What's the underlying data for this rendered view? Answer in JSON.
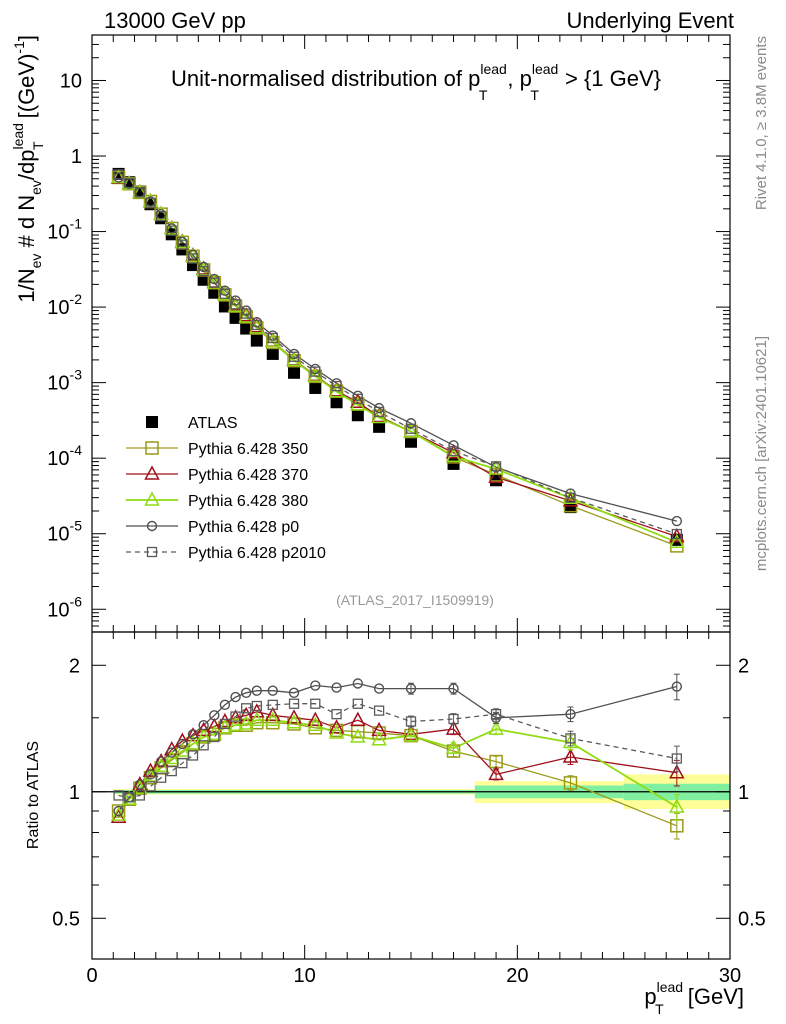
{
  "header": {
    "left": "13000 GeV pp",
    "right": "Underlying Event"
  },
  "side_labels": {
    "rivet": "Rivet 4.1.0, ≥ 3.8M events",
    "mcplots": "mcplots.cern.ch [arXiv:2401.10621]"
  },
  "analysis_id": "(ATLAS_2017_I1509919)",
  "title": {
    "main": "Unit-normalised distribution of p",
    "sup1": "lead",
    "sub1": "T",
    "comma": ", p",
    "sup2": "lead",
    "sub2": "T",
    "tail": " > {1 GeV}"
  },
  "axes": {
    "ylabel": {
      "a": "1/N",
      "a_sub": "ev",
      "b": " # d N",
      "b_sub": "ev",
      "c": "/dp",
      "c_sup": "lead",
      "c_sub": "T",
      "d": " [(GeV)",
      "d_sup": "-1",
      "e": "]"
    },
    "ratio_ylabel": "Ratio to ATLAS",
    "xlabel": {
      "a": "p",
      "a_sup": "lead",
      "a_sub": "T",
      "b": " [GeV]"
    }
  },
  "colors": {
    "atlas": "#000000",
    "p350": "#9a9a1a",
    "p370": "#a0101c",
    "p380": "#8fdc12",
    "p0": "#505050",
    "p2010": "#5a5a5a",
    "band_outer": "#ffff99",
    "band_inner": "#80f0a0"
  },
  "chart_data": [
    {
      "type": "scatter",
      "name": "main",
      "title": "Unit-normalised distribution of pT^lead, pT^lead > {1 GeV}",
      "xlabel": "pT^lead [GeV]",
      "ylabel": "1/N_ev # d N_ev/dpT^lead [(GeV)^-1]",
      "yscale": "log",
      "xlim": [
        0,
        30
      ],
      "ylim": [
        5e-07,
        40
      ],
      "x_ticks": [
        "0",
        "10",
        "20",
        "30"
      ],
      "y_tick_exponents": [
        -6,
        -5,
        -4,
        -3,
        -2,
        -1,
        0,
        1
      ],
      "y_tick_labels": [
        "10^-6",
        "10^-5",
        "10^-4",
        "10^-3",
        "10^-2",
        "10^-1",
        "1",
        "10"
      ],
      "x": [
        1.25,
        1.75,
        2.25,
        2.75,
        3.25,
        3.75,
        4.25,
        4.75,
        5.25,
        5.75,
        6.25,
        6.75,
        7.25,
        7.75,
        8.5,
        9.5,
        10.5,
        11.5,
        12.5,
        13.5,
        15.0,
        17.0,
        19.0,
        22.5,
        27.5
      ],
      "legend": [
        "ATLAS",
        "Pythia 6.428 350",
        "Pythia 6.428 370",
        "Pythia 6.428 380",
        "Pythia 6.428 p0",
        "Pythia 6.428 p2010"
      ],
      "series": [
        {
          "name": "ATLAS",
          "key": "atlas",
          "values": [
            0.58,
            0.45,
            0.34,
            0.23,
            0.15,
            0.092,
            0.058,
            0.036,
            0.023,
            0.0155,
            0.0102,
            0.0072,
            0.0052,
            0.0036,
            0.0024,
            0.00135,
            0.00085,
            0.00055,
            0.00037,
            0.00026,
            0.000165,
            8.4e-05,
            5.1e-05,
            2.25e-05,
            8.3e-06
          ]
        },
        {
          "name": "Pythia 6.428 350",
          "key": "p350",
          "values": [
            0.52,
            0.43,
            0.33,
            0.25,
            0.17,
            0.11,
            0.072,
            0.047,
            0.031,
            0.021,
            0.0145,
            0.0103,
            0.0074,
            0.0053,
            0.0034,
            0.00195,
            0.00121,
            0.00077,
            0.00052,
            0.00036,
            0.000225,
            0.000104,
            6e-05,
            2.35e-05,
            6.9e-06
          ]
        },
        {
          "name": "Pythia 6.428 370",
          "key": "p370",
          "values": [
            0.51,
            0.43,
            0.33,
            0.25,
            0.17,
            0.11,
            0.073,
            0.048,
            0.032,
            0.0215,
            0.015,
            0.0106,
            0.0077,
            0.0055,
            0.00355,
            0.002,
            0.00125,
            0.00078,
            0.00055,
            0.000355,
            0.000225,
            0.000118,
            5.6e-05,
            2.72e-05,
            9.2e-06
          ]
        },
        {
          "name": "Pythia 6.428 380",
          "key": "p380",
          "values": [
            0.52,
            0.43,
            0.33,
            0.25,
            0.17,
            0.109,
            0.072,
            0.047,
            0.031,
            0.021,
            0.0147,
            0.0103,
            0.0074,
            0.0053,
            0.0035,
            0.00197,
            0.00122,
            0.00076,
            0.00051,
            0.000345,
            0.000225,
            0.000106,
            7.2e-05,
            2.95e-05,
            7.7e-06
          ]
        },
        {
          "name": "Pythia 6.428 p0",
          "key": "p0",
          "values": [
            0.52,
            0.43,
            0.33,
            0.25,
            0.17,
            0.11,
            0.073,
            0.049,
            0.034,
            0.0235,
            0.0165,
            0.0122,
            0.009,
            0.0063,
            0.0042,
            0.0024,
            0.00152,
            0.00098,
            0.00067,
            0.00046,
            0.00029,
            0.000148,
            7.6e-05,
            3.4e-05,
            1.47e-05
          ]
        },
        {
          "name": "Pythia 6.428 p2010",
          "key": "p2010",
          "values": [
            0.57,
            0.44,
            0.33,
            0.24,
            0.16,
            0.103,
            0.067,
            0.044,
            0.03,
            0.021,
            0.015,
            0.0109,
            0.0082,
            0.0058,
            0.0039,
            0.0022,
            0.0014,
            0.0009,
            0.00061,
            0.00041,
            0.000245,
            0.000124,
            7.8e-05,
            3e-05,
            9.9e-06
          ]
        }
      ]
    },
    {
      "type": "scatter",
      "name": "ratio",
      "ylabel": "Ratio to ATLAS",
      "xlabel": "pT^lead [GeV]",
      "yscale": "log",
      "xlim": [
        0,
        30
      ],
      "ylim": [
        0.4,
        2.4
      ],
      "y_ticks": [
        "0.5",
        "1",
        "2"
      ],
      "x": [
        1.25,
        1.75,
        2.25,
        2.75,
        3.25,
        3.75,
        4.25,
        4.75,
        5.25,
        5.75,
        6.25,
        6.75,
        7.25,
        7.75,
        8.5,
        9.5,
        10.5,
        11.5,
        12.5,
        13.5,
        15.0,
        17.0,
        19.0,
        22.5,
        27.5
      ],
      "band": {
        "edges": [
          1.0,
          18.0,
          25.0,
          30.0
        ],
        "outer_lo": [
          0.985,
          0.94,
          0.91
        ],
        "outer_hi": [
          1.015,
          1.06,
          1.1
        ],
        "inner_lo": [
          0.99,
          0.965,
          0.955
        ],
        "inner_hi": [
          1.01,
          1.035,
          1.045
        ]
      },
      "series": [
        {
          "name": "Pythia 6.428 350",
          "key": "p350",
          "values": [
            0.9,
            0.96,
            1.02,
            1.08,
            1.14,
            1.19,
            1.24,
            1.3,
            1.35,
            1.37,
            1.42,
            1.44,
            1.44,
            1.46,
            1.46,
            1.45,
            1.42,
            1.4,
            1.39,
            1.38,
            1.36,
            1.25,
            1.18,
            1.05,
            0.83
          ]
        },
        {
          "name": "Pythia 6.428 370",
          "key": "p370",
          "values": [
            0.87,
            0.96,
            1.04,
            1.12,
            1.18,
            1.26,
            1.32,
            1.36,
            1.4,
            1.43,
            1.47,
            1.5,
            1.52,
            1.55,
            1.52,
            1.5,
            1.48,
            1.42,
            1.48,
            1.4,
            1.37,
            1.41,
            1.1,
            1.21,
            1.11
          ]
        },
        {
          "name": "Pythia 6.428 380",
          "key": "p380",
          "values": [
            0.88,
            0.96,
            1.02,
            1.09,
            1.15,
            1.2,
            1.25,
            1.3,
            1.35,
            1.37,
            1.42,
            1.44,
            1.45,
            1.48,
            1.48,
            1.46,
            1.44,
            1.38,
            1.35,
            1.33,
            1.36,
            1.27,
            1.41,
            1.31,
            0.92
          ]
        },
        {
          "name": "Pythia 6.428 p0",
          "key": "p0",
          "values": [
            0.9,
            0.97,
            1.04,
            1.1,
            1.18,
            1.24,
            1.3,
            1.37,
            1.44,
            1.52,
            1.61,
            1.68,
            1.72,
            1.74,
            1.74,
            1.72,
            1.79,
            1.77,
            1.81,
            1.76,
            1.76,
            1.76,
            1.5,
            1.53,
            1.78
          ]
        },
        {
          "name": "Pythia 6.428 p2010",
          "key": "p2010",
          "values": [
            0.98,
            0.97,
            0.98,
            1.03,
            1.08,
            1.12,
            1.17,
            1.22,
            1.29,
            1.35,
            1.45,
            1.51,
            1.58,
            1.6,
            1.61,
            1.62,
            1.62,
            1.53,
            1.62,
            1.56,
            1.47,
            1.49,
            1.53,
            1.34,
            1.2
          ]
        }
      ]
    }
  ]
}
